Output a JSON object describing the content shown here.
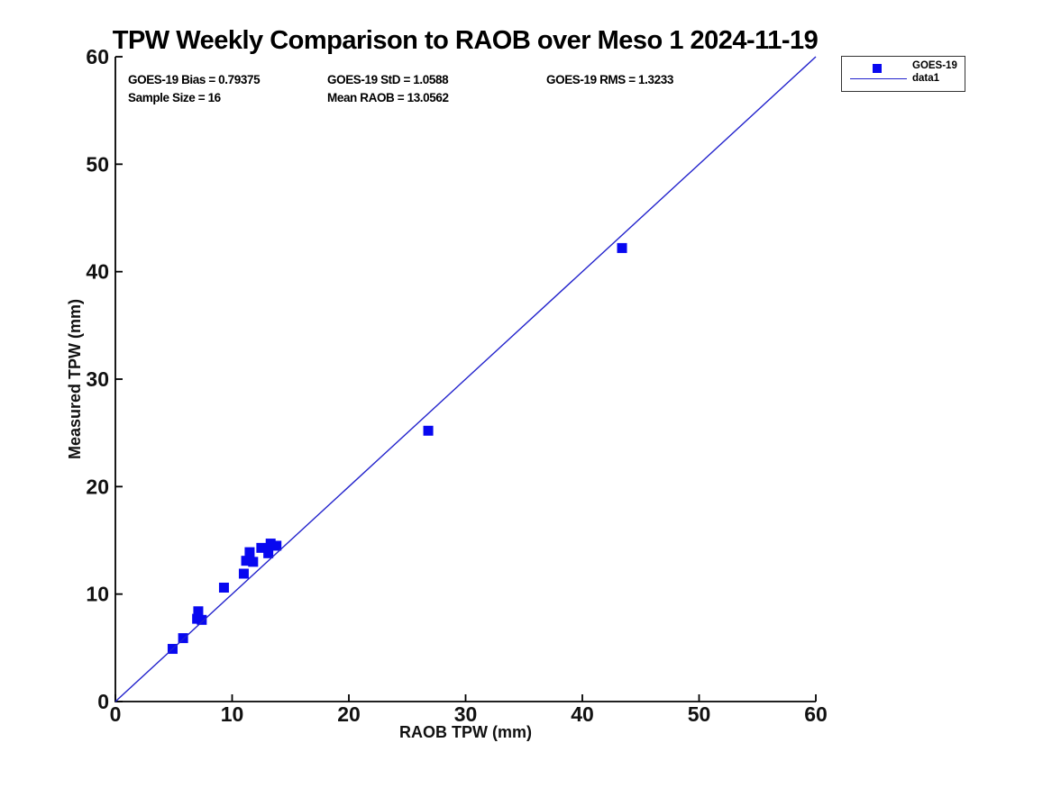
{
  "colors": {
    "marker": "#0808f0",
    "line": "#2222cc",
    "axis": "#000000",
    "text": "#000000",
    "background": "#ffffff"
  },
  "chart_data": {
    "type": "scatter",
    "title": "TPW Weekly Comparison to RAOB over Meso 1 2024-11-19",
    "xlabel": "RAOB TPW (mm)",
    "ylabel": "Measured TPW (mm)",
    "xlim": [
      0,
      60
    ],
    "ylim": [
      0,
      60
    ],
    "xticks": [
      0,
      10,
      20,
      30,
      40,
      50,
      60
    ],
    "yticks": [
      0,
      10,
      20,
      30,
      40,
      50,
      60
    ],
    "grid": false,
    "stats": {
      "bias": "GOES-19 Bias = 0.79375",
      "std": "GOES-19 StD = 1.0588",
      "rms": "GOES-19 RMS = 1.3233",
      "sample_size": "Sample Size = 16",
      "mean_raob": "Mean RAOB = 13.0562"
    },
    "legend": {
      "position": "top-right-outside",
      "entries": [
        {
          "label": "GOES-19",
          "glyph": "square-marker"
        },
        {
          "label": "data1",
          "glyph": "line"
        }
      ]
    },
    "series": [
      {
        "name": "GOES-19",
        "type": "scatter",
        "marker": "square",
        "color": "#0808f0",
        "points": [
          [
            4.9,
            4.9
          ],
          [
            5.8,
            5.9
          ],
          [
            7.0,
            7.7
          ],
          [
            7.4,
            7.6
          ],
          [
            7.1,
            8.4
          ],
          [
            9.3,
            10.6
          ],
          [
            11.0,
            11.9
          ],
          [
            11.2,
            13.1
          ],
          [
            11.8,
            13.0
          ],
          [
            11.5,
            13.9
          ],
          [
            12.5,
            14.3
          ],
          [
            13.1,
            13.8
          ],
          [
            13.3,
            14.7
          ],
          [
            13.8,
            14.5
          ],
          [
            26.8,
            25.2
          ],
          [
            43.4,
            42.2
          ]
        ]
      },
      {
        "name": "data1",
        "type": "line",
        "color": "#2222cc",
        "points": [
          [
            0,
            0
          ],
          [
            60,
            60
          ]
        ]
      }
    ]
  }
}
